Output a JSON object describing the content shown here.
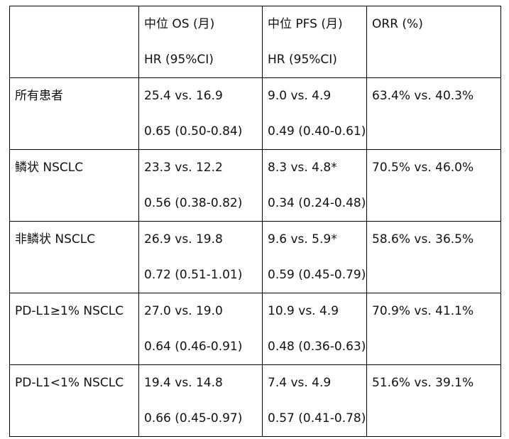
{
  "table": {
    "header": {
      "corner": "",
      "os": {
        "line1": "中位 OS (月)",
        "line2": "HR (95%CI)"
      },
      "pfs": {
        "line1": "中位 PFS (月)",
        "line2": "HR (95%CI)"
      },
      "orr": {
        "line1": "ORR (%)"
      }
    },
    "rows": [
      {
        "label": "所有患者",
        "os": {
          "median": "25.4 vs. 16.9",
          "hr": "0.65 (0.50-0.84)"
        },
        "pfs": {
          "median": "9.0 vs. 4.9",
          "hr": "0.49 (0.40-0.61)"
        },
        "orr": "63.4% vs. 40.3%"
      },
      {
        "label": "鳞状 NSCLC",
        "os": {
          "median": "23.3 vs. 12.2",
          "hr": "0.56 (0.38-0.82)"
        },
        "pfs": {
          "median": "8.3 vs. 4.8*",
          "hr": "0.34 (0.24-0.48)"
        },
        "orr": "70.5% vs. 46.0%"
      },
      {
        "label": "非鳞状 NSCLC",
        "os": {
          "median": "26.9 vs. 19.8",
          "hr": "0.72 (0.51-1.01)"
        },
        "pfs": {
          "median": "9.6 vs. 5.9*",
          "hr": "0.59 (0.45-0.79)"
        },
        "orr": "58.6% vs. 36.5%"
      },
      {
        "label": "PD-L1≥1% NSCLC",
        "os": {
          "median": "27.0 vs. 19.0",
          "hr": "0.64 (0.46-0.91)"
        },
        "pfs": {
          "median": "10.9 vs. 4.9",
          "hr": "0.48 (0.36-0.63)"
        },
        "orr": "70.9% vs. 41.1%"
      },
      {
        "label": "PD-L1<1% NSCLC",
        "os": {
          "median": "19.4 vs. 14.8",
          "hr": "0.66 (0.45-0.97)"
        },
        "pfs": {
          "median": "7.4 vs. 4.9",
          "hr": "0.57 (0.41-0.78)"
        },
        "orr": "51.6% vs. 39.1%"
      }
    ]
  }
}
